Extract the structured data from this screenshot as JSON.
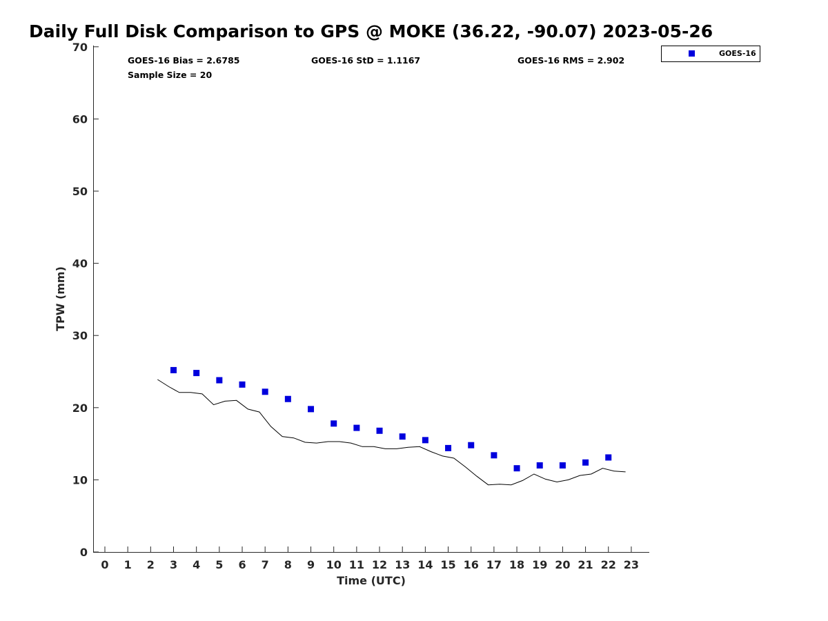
{
  "chart_data": {
    "type": "scatter",
    "title": "Daily Full Disk Comparison to GPS @ MOKE (36.22, -90.07) 2023-05-26",
    "xlabel": "Time (UTC)",
    "ylabel": "TPW (mm)",
    "xlim": [
      -0.5,
      23.8
    ],
    "ylim": [
      0,
      70
    ],
    "x_ticks": [
      0,
      1,
      2,
      3,
      4,
      5,
      6,
      7,
      8,
      9,
      10,
      11,
      12,
      13,
      14,
      15,
      16,
      17,
      18,
      19,
      20,
      21,
      22,
      23
    ],
    "y_ticks": [
      0,
      10,
      20,
      30,
      40,
      50,
      60,
      70
    ],
    "grid": false,
    "legend_position": "top-right (outside plot)",
    "stats": {
      "bias": "GOES-16 Bias = 2.6785",
      "std": "GOES-16 StD = 1.1167",
      "rms": "GOES-16 RMS = 2.902",
      "sample": "Sample Size = 20"
    },
    "series": [
      {
        "name": "GOES-16",
        "kind": "scatter",
        "marker": "square",
        "color": "#0000dd",
        "x": [
          3,
          4,
          5,
          6,
          7,
          8,
          9,
          10,
          11,
          12,
          13,
          14,
          15,
          16,
          17,
          18,
          19,
          20,
          21,
          22
        ],
        "y": [
          25.2,
          24.8,
          23.8,
          23.2,
          22.2,
          21.2,
          19.8,
          17.8,
          17.2,
          16.8,
          16.0,
          15.5,
          14.4,
          14.8,
          13.4,
          11.6,
          12.0,
          12.0,
          12.4,
          13.1
        ]
      },
      {
        "kind": "line",
        "color": "#000000",
        "x": [
          2.3,
          2.8,
          3.25,
          3.75,
          4.25,
          4.75,
          5.25,
          5.75,
          6.25,
          6.75,
          7.25,
          7.75,
          8.25,
          8.75,
          9.25,
          9.75,
          10.25,
          10.75,
          11.25,
          11.75,
          12.25,
          12.75,
          13.25,
          13.75,
          14.25,
          14.75,
          15.25,
          15.75,
          16.25,
          16.75,
          17.25,
          17.75,
          18.25,
          18.75,
          19.25,
          19.75,
          20.25,
          20.75,
          21.25,
          21.75,
          22.25,
          22.75
        ],
        "y": [
          23.9,
          22.9,
          22.1,
          22.1,
          21.9,
          20.4,
          20.9,
          21.0,
          19.8,
          19.4,
          17.4,
          16.0,
          15.8,
          15.2,
          15.1,
          15.3,
          15.3,
          15.1,
          14.6,
          14.6,
          14.3,
          14.3,
          14.5,
          14.6,
          13.9,
          13.3,
          13.0,
          11.8,
          10.5,
          9.3,
          9.4,
          9.3,
          9.9,
          10.8,
          10.1,
          9.7,
          10.0,
          10.6,
          10.8,
          11.6,
          11.2,
          11.1
        ]
      }
    ]
  }
}
